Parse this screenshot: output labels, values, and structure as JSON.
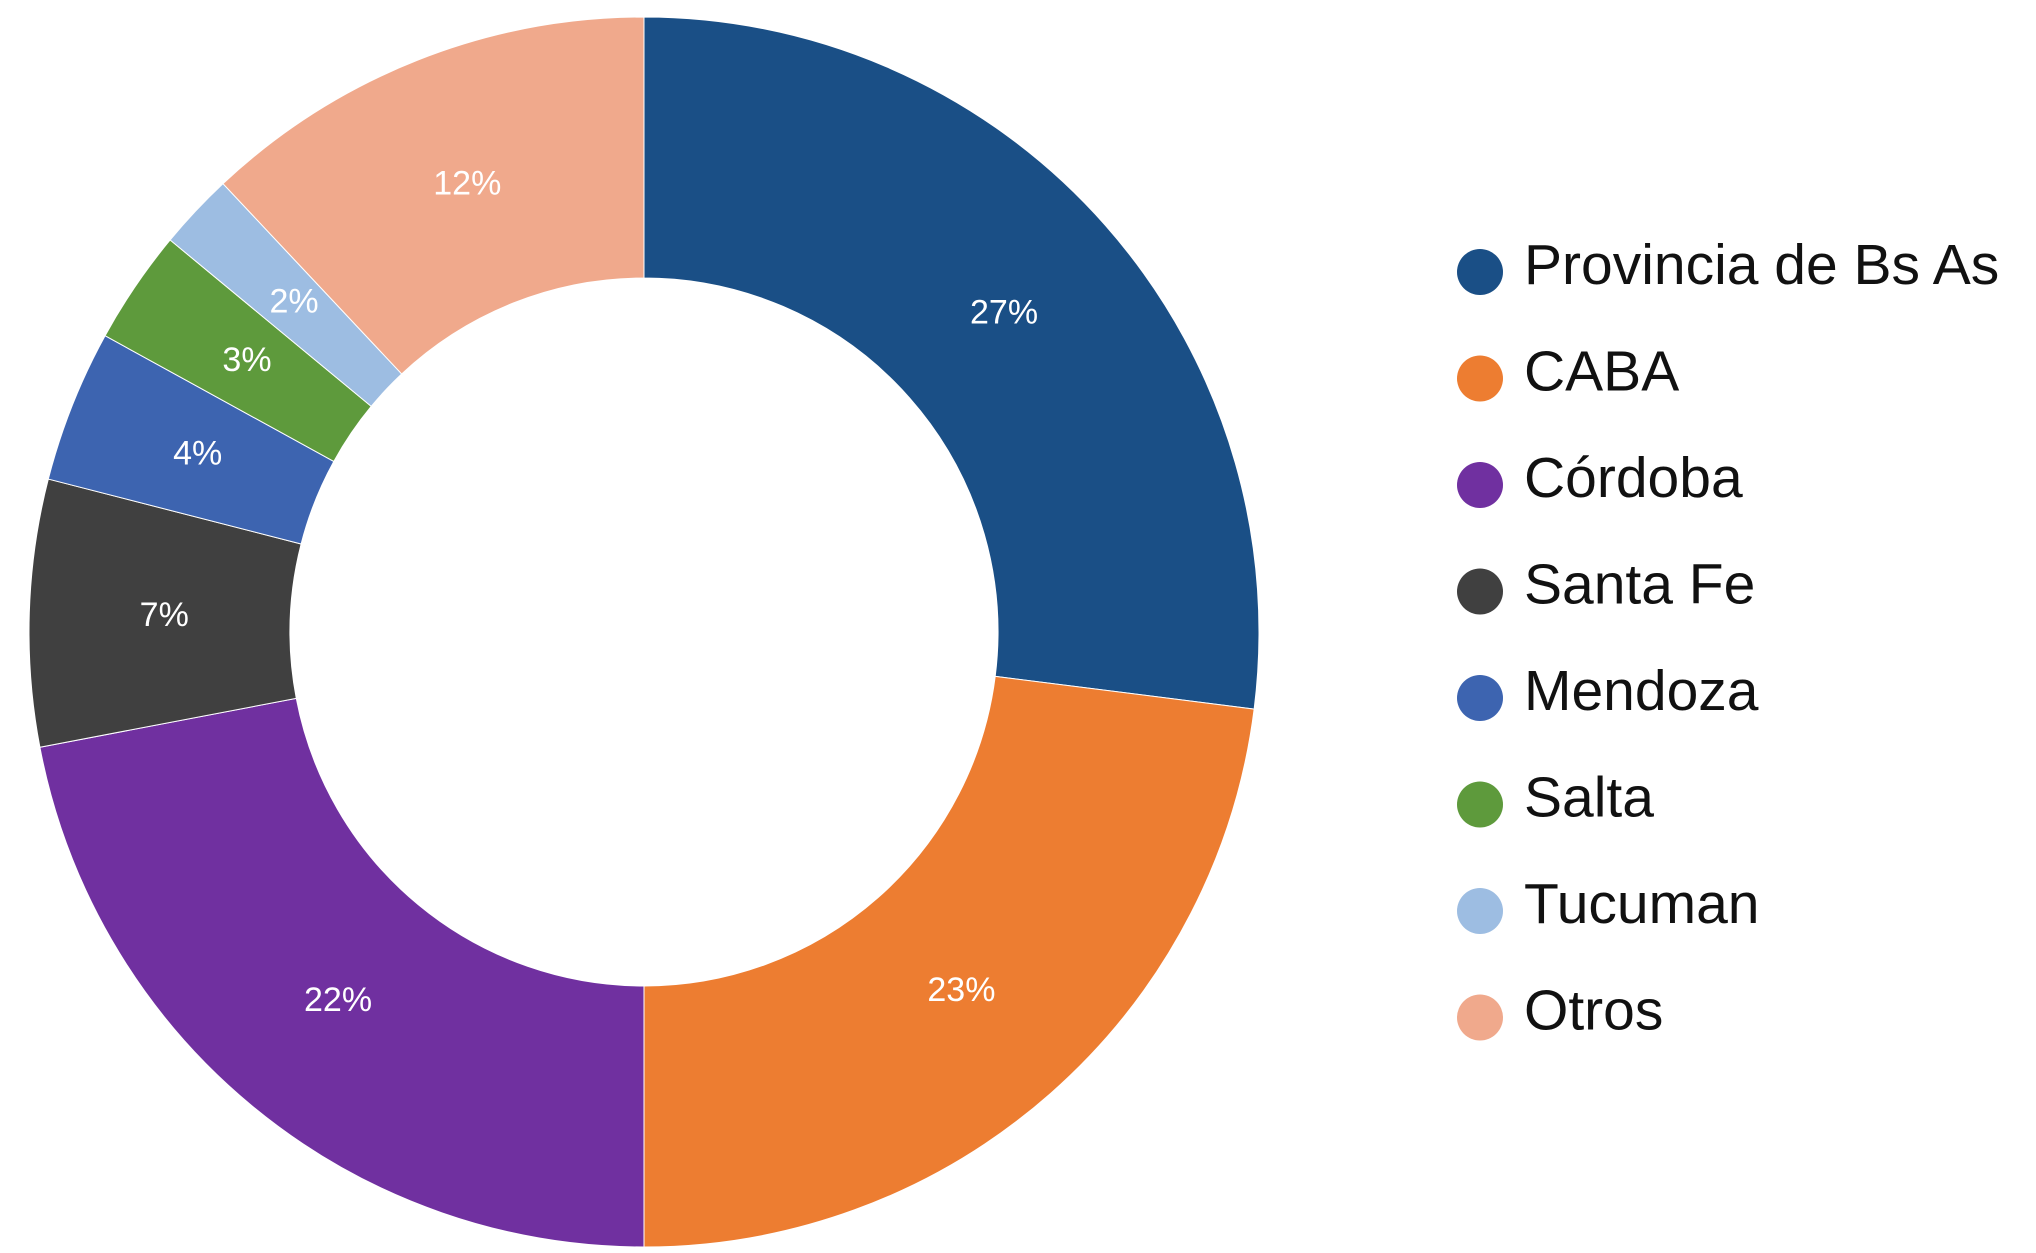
{
  "chart_data": {
    "type": "donut",
    "categories": [
      "Provincia de Bs As",
      "CABA",
      "Córdoba",
      "Santa Fe",
      "Mendoza",
      "Salta",
      "Tucuman",
      "Otros"
    ],
    "values": [
      27,
      23,
      22,
      7,
      4,
      3,
      2,
      12
    ],
    "value_labels": [
      "27%",
      "23%",
      "22%",
      "7%",
      "4%",
      "3%",
      "2%",
      "12%"
    ],
    "colors": [
      "#1a4f86",
      "#ed7d31",
      "#7030a0",
      "#404040",
      "#3d64b0",
      "#5e9a3c",
      "#9dbde2",
      "#f0a98c"
    ],
    "legend": "right"
  }
}
